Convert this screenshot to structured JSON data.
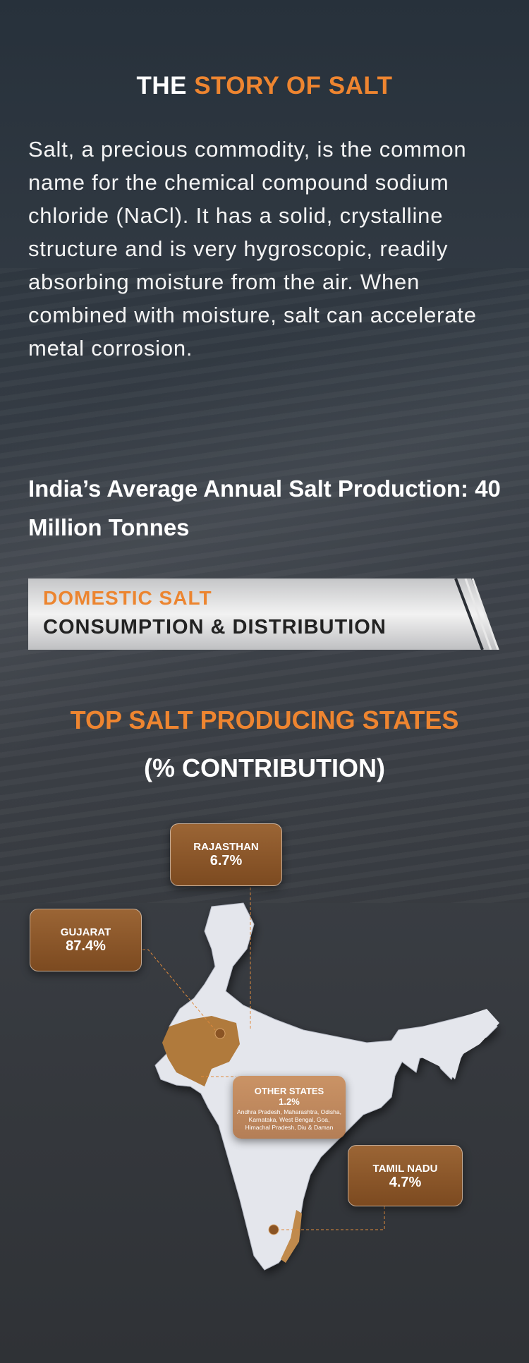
{
  "header": {
    "title_white": "THE ",
    "title_orange": "STORY OF SALT"
  },
  "intro": "Salt, a precious commodity, is the common name for the chemical compound sodium chloride (NaCl). It has a solid, crystalline structure and is very hygroscopic, readily absorbing moisture from the air. When combined with moisture, salt can accelerate metal corrosion.",
  "production": "India’s Average Annual Salt Production: 40 Million Tonnes",
  "banner": {
    "line1": "DOMESTIC SALT",
    "line2": "CONSUMPTION & DISTRIBUTION"
  },
  "section": {
    "title": "TOP SALT PRODUCING STATES",
    "subtitle": "(% CONTRIBUTION)"
  },
  "states": [
    {
      "name": "RAJASTHAN",
      "value": "6.7%"
    },
    {
      "name": "GUJARAT",
      "value": "87.4%"
    },
    {
      "name": "OTHER STATES",
      "value": "1.2%",
      "detail": "Andhra Pradesh, Maharashtra, Odisha, Karnataka, West Bengal, Goa, Himachal Pradesh, Diu & Daman"
    },
    {
      "name": "TAMIL NADU",
      "value": "4.7%"
    }
  ],
  "colors": {
    "accent": "#ee8530",
    "highlight": "#b07a3c",
    "map": "#e4e6ec"
  }
}
